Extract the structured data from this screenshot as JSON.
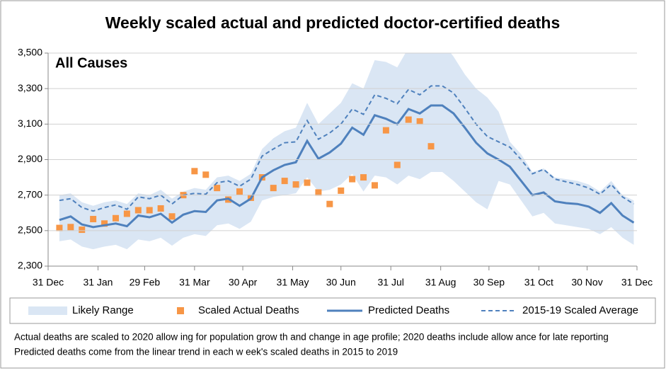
{
  "chart_data": {
    "type": "line",
    "title": "Weekly scaled actual and predicted doctor-certified deaths",
    "annotation": "All Causes",
    "notes": [
      "Actual deaths are scaled to 2020 allow ing for population grow th and change in age profile; 2020 deaths include allow ance for late reporting",
      "Predicted deaths come from the linear trend in each w eek's scaled deaths in 2015 to 2019"
    ],
    "x": [
      7,
      14,
      21,
      28,
      35,
      42,
      49,
      56,
      63,
      70,
      77,
      84,
      91,
      98,
      105,
      112,
      119,
      126,
      133,
      140,
      147,
      154,
      161,
      168,
      175,
      182,
      189,
      196,
      203,
      210,
      217,
      224,
      231,
      238,
      245,
      252,
      259,
      266,
      273,
      280,
      287,
      294,
      301,
      308,
      315,
      322,
      329,
      336,
      343,
      350,
      357,
      364
    ],
    "xlim": [
      0,
      366
    ],
    "xticks": [
      {
        "value": 0,
        "label": "31 Dec"
      },
      {
        "value": 31,
        "label": "31 Jan"
      },
      {
        "value": 60,
        "label": "29 Feb"
      },
      {
        "value": 91,
        "label": "31 Mar"
      },
      {
        "value": 121,
        "label": "30 Apr"
      },
      {
        "value": 152,
        "label": "31 May"
      },
      {
        "value": 182,
        "label": "30 Jun"
      },
      {
        "value": 213,
        "label": "31 Jul"
      },
      {
        "value": 244,
        "label": "31 Aug"
      },
      {
        "value": 274,
        "label": "30 Sep"
      },
      {
        "value": 305,
        "label": "31 Oct"
      },
      {
        "value": 335,
        "label": "30 Nov"
      },
      {
        "value": 366,
        "label": "31 Dec"
      }
    ],
    "ylim": [
      2300,
      3500
    ],
    "yticks": [
      {
        "value": 2300,
        "label": "2,300"
      },
      {
        "value": 2500,
        "label": "2,500"
      },
      {
        "value": 2700,
        "label": "2,700"
      },
      {
        "value": 2900,
        "label": "2,900"
      },
      {
        "value": 3100,
        "label": "3,100"
      },
      {
        "value": 3300,
        "label": "3,300"
      },
      {
        "value": 3500,
        "label": "3,500"
      }
    ],
    "grid": true,
    "series": [
      {
        "name": "Likely Range",
        "style": "band",
        "color": "#dae6f4",
        "upper": [
          2700,
          2710,
          2660,
          2640,
          2660,
          2670,
          2650,
          2710,
          2700,
          2730,
          2680,
          2720,
          2740,
          2730,
          2800,
          2810,
          2780,
          2820,
          2960,
          3020,
          3060,
          3080,
          3220,
          3100,
          3160,
          3220,
          3330,
          3300,
          3460,
          3450,
          3420,
          3530,
          3510,
          3560,
          3560,
          3480,
          3380,
          3300,
          3250,
          3170,
          3000,
          2930,
          2830,
          2850,
          2800,
          2790,
          2780,
          2760,
          2720,
          2780,
          2700,
          2670
        ],
        "lower": [
          2440,
          2450,
          2410,
          2395,
          2410,
          2420,
          2395,
          2450,
          2440,
          2460,
          2415,
          2460,
          2480,
          2470,
          2530,
          2540,
          2510,
          2550,
          2670,
          2690,
          2700,
          2710,
          2800,
          2720,
          2730,
          2760,
          2820,
          2720,
          2810,
          2800,
          2760,
          2810,
          2790,
          2830,
          2830,
          2780,
          2720,
          2660,
          2620,
          2780,
          2760,
          2670,
          2580,
          2600,
          2540,
          2530,
          2520,
          2510,
          2480,
          2520,
          2460,
          2420
        ]
      },
      {
        "name": "Scaled Actual Deaths",
        "style": "scatter",
        "color": "#f79646",
        "values": [
          2515,
          2520,
          2505,
          2565,
          2540,
          2570,
          2595,
          2615,
          2615,
          2625,
          2580,
          2700,
          2835,
          2815,
          2740,
          2675,
          2720,
          2685,
          2800,
          2740,
          2780,
          2760,
          2770,
          2715,
          2650,
          2725,
          2790,
          2800,
          2755,
          3065,
          2870,
          3125,
          3115,
          2975,
          null,
          null,
          null,
          null,
          null,
          null,
          null,
          null,
          null,
          null,
          null,
          null,
          null,
          null,
          null,
          null,
          null,
          null
        ]
      },
      {
        "name": "Predicted Deaths",
        "style": "solid",
        "color": "#4f81bd",
        "values": [
          2560,
          2580,
          2535,
          2520,
          2530,
          2540,
          2525,
          2585,
          2575,
          2595,
          2545,
          2590,
          2610,
          2605,
          2670,
          2680,
          2640,
          2680,
          2800,
          2840,
          2870,
          2885,
          3005,
          2905,
          2940,
          2990,
          3080,
          3040,
          3150,
          3130,
          3100,
          3185,
          3160,
          3205,
          3205,
          3160,
          3080,
          2995,
          2935,
          2900,
          2860,
          2780,
          2700,
          2715,
          2665,
          2655,
          2650,
          2635,
          2600,
          2655,
          2585,
          2545
        ]
      },
      {
        "name": "2015-19 Scaled Average",
        "style": "dashed",
        "color": "#4f81bd",
        "values": [
          2670,
          2680,
          2630,
          2610,
          2630,
          2645,
          2620,
          2690,
          2680,
          2700,
          2650,
          2700,
          2710,
          2705,
          2770,
          2780,
          2750,
          2790,
          2920,
          2960,
          2995,
          3000,
          3120,
          3015,
          3050,
          3100,
          3185,
          3155,
          3265,
          3245,
          3215,
          3295,
          3265,
          3315,
          3315,
          3275,
          3190,
          3100,
          3030,
          3000,
          2970,
          2900,
          2820,
          2845,
          2790,
          2775,
          2760,
          2740,
          2705,
          2760,
          2690,
          2650
        ]
      }
    ]
  }
}
